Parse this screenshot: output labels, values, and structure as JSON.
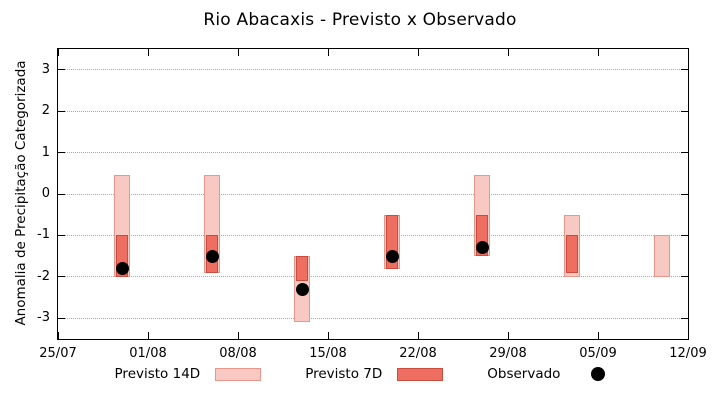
{
  "title": "Rio Abacaxis - Previsto x Observado",
  "legend": {
    "items": [
      {
        "label": "Previsto 14D",
        "swatch": "box-light"
      },
      {
        "label": "Previsto 7D",
        "swatch": "box-dark"
      },
      {
        "label": "Observado",
        "swatch": "dot"
      }
    ]
  },
  "colors": {
    "previsto14_fill": "#f8c9c3",
    "previsto14_border": "#e9968d",
    "previsto7_fill": "#ee6e61",
    "previsto7_border": "#c94c3e",
    "observado": "#000000",
    "grid": "#a8a8a8",
    "axis": "#000000"
  },
  "chart_data": {
    "type": "bar",
    "title": "Rio Abacaxis - Previsto x Observado",
    "xlabel": "",
    "ylabel": "Anomalia de Precipitação Categorizada",
    "ylim": [
      -3.5,
      3.5
    ],
    "yticks": [
      -3,
      -2,
      -1,
      0,
      1,
      2,
      3
    ],
    "grid": "dotted-horizontal",
    "legend_position": "below",
    "x_span_days": 49,
    "xticks": [
      {
        "day": 0,
        "label": "25/07"
      },
      {
        "day": 7,
        "label": "01/08"
      },
      {
        "day": 14,
        "label": "08/08"
      },
      {
        "day": 21,
        "label": "15/08"
      },
      {
        "day": 28,
        "label": "22/08"
      },
      {
        "day": 35,
        "label": "29/08"
      },
      {
        "day": 42,
        "label": "05/09"
      },
      {
        "day": 49,
        "label": "12/09"
      }
    ],
    "series": [
      {
        "name": "Previsto 14D",
        "type": "range_bar",
        "points": [
          {
            "date": "30/07",
            "day": 5,
            "low": -2.0,
            "high": 0.45
          },
          {
            "date": "06/08",
            "day": 12,
            "low": -1.9,
            "high": 0.45
          },
          {
            "date": "13/08",
            "day": 19,
            "low": -3.1,
            "high": -1.5
          },
          {
            "date": "20/08",
            "day": 26,
            "low": -1.8,
            "high": -0.5
          },
          {
            "date": "27/08",
            "day": 33,
            "low": -1.5,
            "high": 0.45
          },
          {
            "date": "03/09",
            "day": 40,
            "low": -2.0,
            "high": -0.5
          },
          {
            "date": "10/09",
            "day": 47,
            "low": -2.0,
            "high": -1.0
          }
        ]
      },
      {
        "name": "Previsto 7D",
        "type": "range_bar",
        "points": [
          {
            "date": "30/07",
            "day": 5,
            "low": -2.0,
            "high": -1.0
          },
          {
            "date": "06/08",
            "day": 12,
            "low": -1.9,
            "high": -1.0
          },
          {
            "date": "13/08",
            "day": 19,
            "low": -2.1,
            "high": -1.5
          },
          {
            "date": "20/08",
            "day": 26,
            "low": -1.8,
            "high": -0.5
          },
          {
            "date": "27/08",
            "day": 33,
            "low": -1.5,
            "high": -0.5
          },
          {
            "date": "03/09",
            "day": 40,
            "low": -1.9,
            "high": -1.0
          }
        ]
      },
      {
        "name": "Observado",
        "type": "scatter",
        "points": [
          {
            "date": "30/07",
            "day": 5,
            "value": -1.8
          },
          {
            "date": "06/08",
            "day": 12,
            "value": -1.5
          },
          {
            "date": "13/08",
            "day": 19,
            "value": -2.3
          },
          {
            "date": "20/08",
            "day": 26,
            "value": -1.5
          },
          {
            "date": "27/08",
            "day": 33,
            "value": -1.3
          }
        ]
      }
    ]
  }
}
